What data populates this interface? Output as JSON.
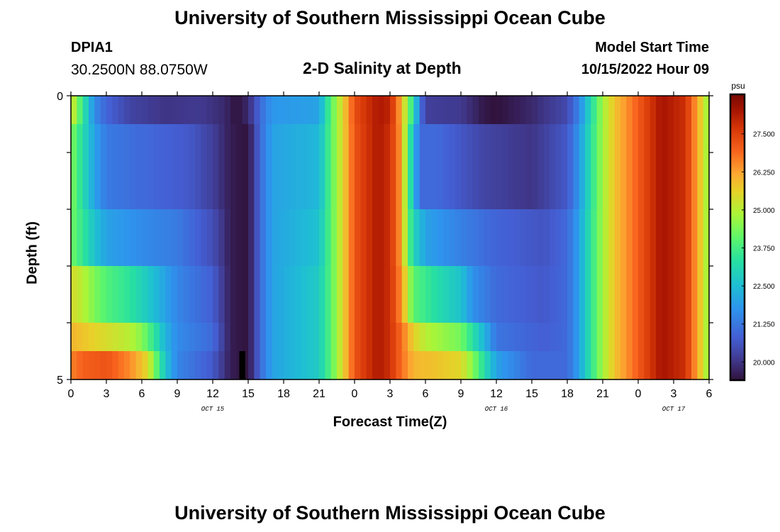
{
  "header": {
    "title": "University of Southern Mississippi Ocean Cube",
    "station_id": "DPIA1",
    "coordinates": "30.2500N  88.0750W",
    "subtitle": "2-D Salinity at Depth",
    "model_start_label": "Model Start Time",
    "model_start_value": "10/15/2022 Hour 09"
  },
  "footer": {
    "title": "University of Southern Mississippi Ocean Cube"
  },
  "chart_data": {
    "type": "heatmap",
    "title": "2-D Salinity at Depth",
    "xlabel": "Forecast Time(Z)",
    "ylabel": "Depth (ft)",
    "x_range_hours": [
      0,
      54
    ],
    "y_range_ft": [
      0,
      5
    ],
    "x_tick_labels": [
      "0",
      "3",
      "6",
      "9",
      "12",
      "15",
      "18",
      "21",
      "0",
      "3",
      "6",
      "9",
      "12",
      "15",
      "18",
      "21",
      "0",
      "3",
      "6"
    ],
    "y_tick_labels": [
      "0",
      "5"
    ],
    "date_labels": [
      {
        "text": "OCT 15",
        "hour": 12
      },
      {
        "text": "OCT 16",
        "hour": 36
      },
      {
        "text": "OCT 17",
        "hour": 51
      }
    ],
    "colorbar": {
      "unit": "psu",
      "min": 19.4,
      "max": 28.8,
      "tick_values": [
        20.0,
        21.25,
        22.5,
        23.75,
        25.0,
        26.25,
        27.5
      ],
      "tick_labels": [
        "20.000",
        "21.250",
        "22.500",
        "23.750",
        "25.000",
        "26.250",
        "27.500"
      ]
    },
    "depth_layers_ft": [
      0.25,
      0.75,
      1.25,
      1.75,
      2.25,
      2.75,
      3.25,
      3.75,
      4.25,
      4.75
    ],
    "salinity_profiles": [
      {
        "layer": "0.25-0.75 ft",
        "keyframes": [
          [
            0,
            25.5
          ],
          [
            1,
            23.5
          ],
          [
            2,
            21.6
          ],
          [
            3,
            20.9
          ],
          [
            5,
            20.3
          ],
          [
            8,
            20.0
          ],
          [
            11,
            20.1
          ],
          [
            13,
            19.8
          ],
          [
            14,
            19.4
          ],
          [
            15,
            19.8
          ],
          [
            16,
            21.0
          ],
          [
            17,
            21.8
          ],
          [
            21,
            22.0
          ],
          [
            22,
            24.0
          ],
          [
            23,
            25.5
          ],
          [
            24,
            27.3
          ],
          [
            26,
            28.2
          ],
          [
            27,
            28.0
          ],
          [
            28,
            26.0
          ],
          [
            28.5,
            24.5
          ],
          [
            29,
            23.2
          ],
          [
            29.5,
            21.3
          ],
          [
            30,
            20.2
          ],
          [
            33,
            20.1
          ],
          [
            35,
            19.5
          ],
          [
            36,
            19.4
          ],
          [
            39,
            19.8
          ],
          [
            42,
            20.4
          ],
          [
            43,
            21.5
          ],
          [
            45,
            24.8
          ],
          [
            46,
            25.8
          ],
          [
            50,
            28.3
          ],
          [
            52,
            27.8
          ],
          [
            53,
            26.2
          ],
          [
            54,
            24.5
          ]
        ]
      },
      {
        "layer": "0.75-2.25 ft",
        "keyframes": [
          [
            0,
            24.5
          ],
          [
            1,
            23.2
          ],
          [
            2,
            22.0
          ],
          [
            3,
            21.3
          ],
          [
            6,
            21.0
          ],
          [
            10,
            20.7
          ],
          [
            12,
            20.2
          ],
          [
            13.5,
            19.6
          ],
          [
            15,
            19.4
          ],
          [
            16,
            21.0
          ],
          [
            17,
            22.0
          ],
          [
            21,
            22.4
          ],
          [
            22,
            24.0
          ],
          [
            23,
            25.5
          ],
          [
            24,
            27.2
          ],
          [
            26,
            28.2
          ],
          [
            27,
            27.8
          ],
          [
            28,
            26.2
          ],
          [
            28.5,
            24.0
          ],
          [
            29,
            22.5
          ],
          [
            29.5,
            21.0
          ],
          [
            31,
            21.0
          ],
          [
            35,
            20.3
          ],
          [
            39,
            20.0
          ],
          [
            42,
            20.7
          ],
          [
            43,
            21.8
          ],
          [
            45,
            24.8
          ],
          [
            46,
            25.8
          ],
          [
            50,
            28.3
          ],
          [
            52,
            27.8
          ],
          [
            53,
            26.2
          ],
          [
            54,
            24.5
          ]
        ]
      },
      {
        "layer": "2.25-3.25 ft",
        "keyframes": [
          [
            0,
            24.3
          ],
          [
            1,
            23.5
          ],
          [
            2,
            22.6
          ],
          [
            3,
            22.0
          ],
          [
            6,
            21.6
          ],
          [
            9,
            21.3
          ],
          [
            12,
            20.5
          ],
          [
            13.5,
            19.6
          ],
          [
            15,
            19.4
          ],
          [
            16,
            21.0
          ],
          [
            17,
            22.0
          ],
          [
            21,
            22.6
          ],
          [
            22,
            24.0
          ],
          [
            23,
            25.5
          ],
          [
            24,
            27.2
          ],
          [
            26,
            28.2
          ],
          [
            27,
            27.8
          ],
          [
            28,
            26.2
          ],
          [
            28.5,
            24.2
          ],
          [
            29,
            23.0
          ],
          [
            30,
            22.0
          ],
          [
            33,
            21.4
          ],
          [
            36,
            20.9
          ],
          [
            40,
            20.6
          ],
          [
            42,
            21.0
          ],
          [
            43,
            22.0
          ],
          [
            45,
            24.8
          ],
          [
            46,
            25.8
          ],
          [
            50,
            28.3
          ],
          [
            52,
            27.8
          ],
          [
            53,
            26.2
          ],
          [
            54,
            24.5
          ]
        ]
      },
      {
        "layer": "3.25-4.00 ft",
        "keyframes": [
          [
            0,
            25.4
          ],
          [
            1,
            25.0
          ],
          [
            2,
            24.4
          ],
          [
            3,
            23.9
          ],
          [
            5,
            23.4
          ],
          [
            7,
            22.5
          ],
          [
            9,
            21.5
          ],
          [
            12,
            20.8
          ],
          [
            13.5,
            19.6
          ],
          [
            15,
            19.4
          ],
          [
            16,
            21.0
          ],
          [
            17,
            22.0
          ],
          [
            21,
            22.8
          ],
          [
            22,
            24.0
          ],
          [
            23,
            25.5
          ],
          [
            24,
            27.2
          ],
          [
            26,
            28.2
          ],
          [
            27,
            27.8
          ],
          [
            28,
            26.4
          ],
          [
            28.5,
            25.0
          ],
          [
            29,
            24.0
          ],
          [
            31,
            23.2
          ],
          [
            33,
            22.6
          ],
          [
            34,
            21.7
          ],
          [
            36,
            21.0
          ],
          [
            40,
            20.7
          ],
          [
            42,
            21.0
          ],
          [
            43,
            22.0
          ],
          [
            45,
            24.8
          ],
          [
            46,
            25.8
          ],
          [
            50,
            28.3
          ],
          [
            52,
            27.8
          ],
          [
            53,
            26.2
          ],
          [
            54,
            24.5
          ]
        ]
      },
      {
        "layer": "4.00-4.50 ft",
        "keyframes": [
          [
            0,
            26.0
          ],
          [
            1,
            25.8
          ],
          [
            3,
            25.4
          ],
          [
            5,
            25.0
          ],
          [
            6,
            24.5
          ],
          [
            7,
            23.5
          ],
          [
            8,
            22.3
          ],
          [
            9,
            21.6
          ],
          [
            12,
            21.0
          ],
          [
            13.5,
            19.6
          ],
          [
            15,
            19.4
          ],
          [
            16,
            21.0
          ],
          [
            17,
            22.0
          ],
          [
            21,
            22.8
          ],
          [
            22,
            24.0
          ],
          [
            23,
            25.5
          ],
          [
            24,
            27.2
          ],
          [
            26,
            28.2
          ],
          [
            27,
            27.8
          ],
          [
            28,
            26.8
          ],
          [
            29,
            25.6
          ],
          [
            30,
            25.0
          ],
          [
            33,
            24.3
          ],
          [
            34,
            23.3
          ],
          [
            35,
            22.3
          ],
          [
            36,
            21.2
          ],
          [
            40,
            20.8
          ],
          [
            42,
            21.0
          ],
          [
            43,
            22.0
          ],
          [
            45,
            24.8
          ],
          [
            46,
            25.8
          ],
          [
            50,
            28.3
          ],
          [
            52,
            27.8
          ],
          [
            53,
            26.2
          ],
          [
            54,
            24.5
          ]
        ]
      },
      {
        "layer": "4.50-5.00 ft",
        "keyframes": [
          [
            0,
            26.6
          ],
          [
            1,
            27.0
          ],
          [
            3,
            27.2
          ],
          [
            5,
            26.5
          ],
          [
            6.5,
            25.5
          ],
          [
            7,
            24.5
          ],
          [
            8,
            22.6
          ],
          [
            9,
            21.5
          ],
          [
            12,
            20.7
          ],
          [
            13.5,
            19.6
          ],
          [
            15,
            19.4
          ],
          [
            16,
            21.0
          ],
          [
            17,
            22.0
          ],
          [
            21,
            22.8
          ],
          [
            22,
            24.0
          ],
          [
            23,
            25.5
          ],
          [
            24,
            27.2
          ],
          [
            26,
            28.2
          ],
          [
            27,
            27.8
          ],
          [
            28,
            26.8
          ],
          [
            29,
            26.0
          ],
          [
            31,
            25.8
          ],
          [
            33,
            25.5
          ],
          [
            34,
            24.5
          ],
          [
            35,
            23.2
          ],
          [
            36,
            22.0
          ],
          [
            39,
            21.0
          ],
          [
            42,
            21.0
          ],
          [
            43,
            22.0
          ],
          [
            45,
            24.8
          ],
          [
            46,
            25.8
          ],
          [
            50,
            28.3
          ],
          [
            52,
            27.8
          ],
          [
            53,
            26.2
          ],
          [
            54,
            24.5
          ]
        ]
      }
    ],
    "missing_data": [
      {
        "hour_start": 14.25,
        "hour_end": 14.75,
        "depth_start_ft": 4.5,
        "depth_end_ft": 5.0
      }
    ]
  }
}
